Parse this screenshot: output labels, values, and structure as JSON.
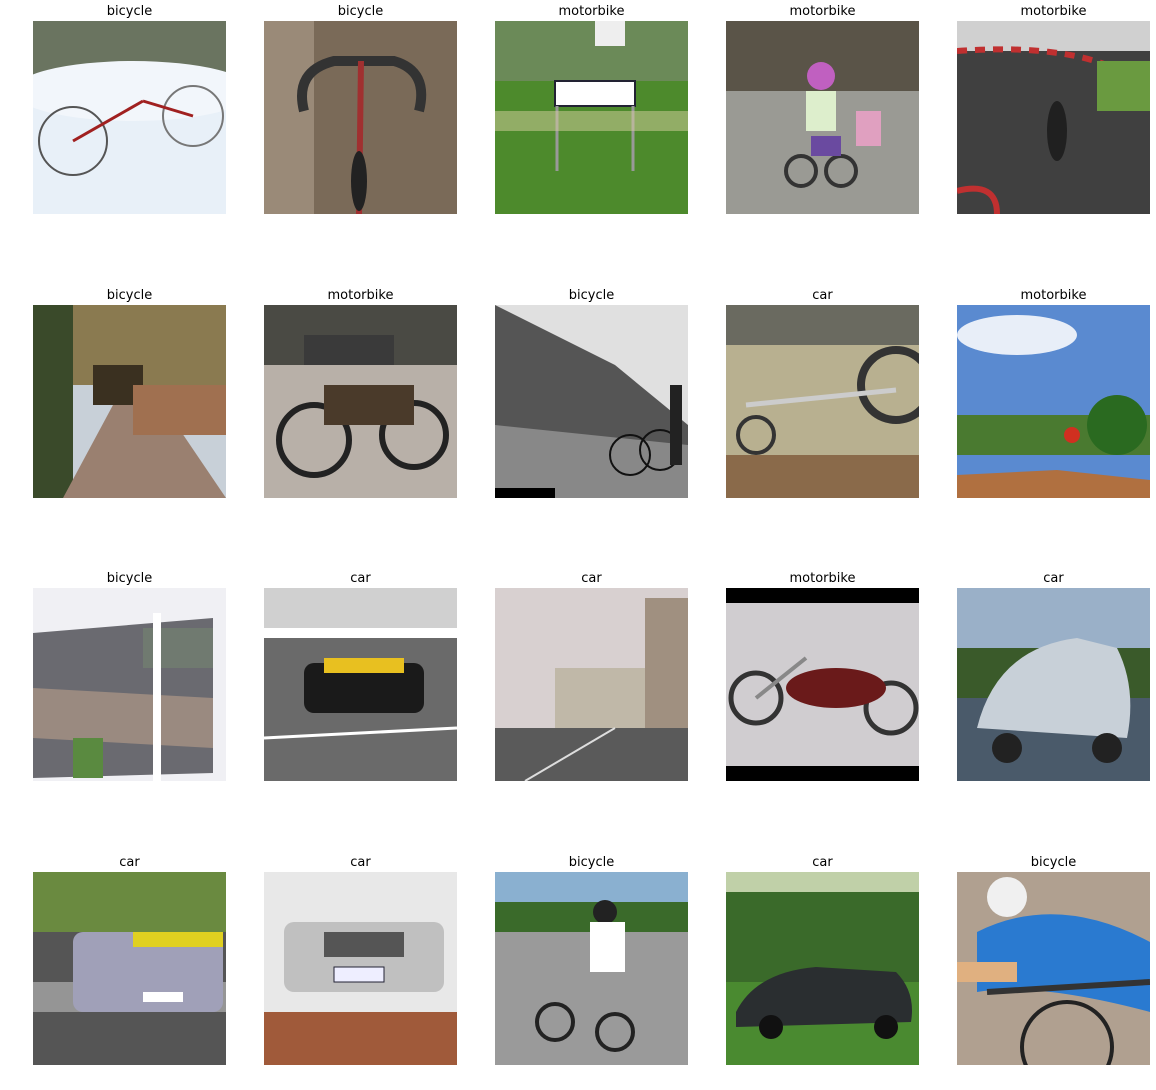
{
  "grid": {
    "rows": 4,
    "cols": 5,
    "items": [
      {
        "label": "bicycle",
        "scene": "snow-bicycle"
      },
      {
        "label": "bicycle",
        "scene": "handlebars"
      },
      {
        "label": "motorbike",
        "scene": "road-sign"
      },
      {
        "label": "motorbike",
        "scene": "child-bike"
      },
      {
        "label": "motorbike",
        "scene": "race-track"
      },
      {
        "label": "bicycle",
        "scene": "flooded-path"
      },
      {
        "label": "motorbike",
        "scene": "vintage-motorbike"
      },
      {
        "label": "bicycle",
        "scene": "bw-hill-bike"
      },
      {
        "label": "car",
        "scene": "bike-shop"
      },
      {
        "label": "motorbike",
        "scene": "motocross"
      },
      {
        "label": "bicycle",
        "scene": "window-view"
      },
      {
        "label": "car",
        "scene": "race-car"
      },
      {
        "label": "car",
        "scene": "city-street"
      },
      {
        "label": "motorbike",
        "scene": "chopper"
      },
      {
        "label": "car",
        "scene": "silver-hatch"
      },
      {
        "label": "car",
        "scene": "drift-car"
      },
      {
        "label": "car",
        "scene": "white-car-front"
      },
      {
        "label": "bicycle",
        "scene": "bmx-rider"
      },
      {
        "label": "car",
        "scene": "dark-sedan"
      },
      {
        "label": "bicycle",
        "scene": "cyclist"
      }
    ]
  }
}
